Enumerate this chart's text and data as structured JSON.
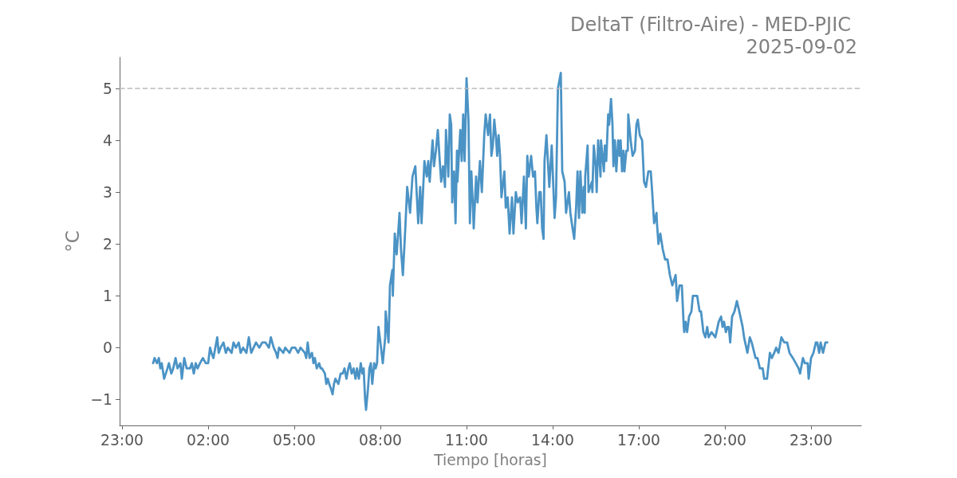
{
  "chart_data": {
    "type": "line",
    "title": "DeltaT (Filtro-Aire) - MED-PJIC",
    "subtitle": "2025-09-02",
    "xlabel": "Tiempo [horas]",
    "ylabel": "°C",
    "color": "#4b93c5",
    "x": [
      "2025-09-02T00:05",
      "2025-09-02T00:08",
      "2025-09-02T00:13",
      "2025-09-02T00:17",
      "2025-09-02T00:20",
      "2025-09-02T00:23",
      "2025-09-02T00:28",
      "2025-09-02T00:35",
      "2025-09-02T00:38",
      "2025-09-02T00:43",
      "2025-09-02T00:47",
      "2025-09-02T00:52",
      "2025-09-02T00:56",
      "2025-09-02T01:02",
      "2025-09-02T01:05",
      "2025-09-02T01:10",
      "2025-09-02T01:15",
      "2025-09-02T01:22",
      "2025-09-02T01:26",
      "2025-09-02T01:30",
      "2025-09-02T01:34",
      "2025-09-02T01:38",
      "2025-09-02T01:43",
      "2025-09-02T01:49",
      "2025-09-02T01:55",
      "2025-09-02T02:00",
      "2025-09-02T02:04",
      "2025-09-02T02:07",
      "2025-09-02T02:11",
      "2025-09-02T02:15",
      "2025-09-02T02:19",
      "2025-09-02T02:22",
      "2025-09-02T02:26",
      "2025-09-02T02:32",
      "2025-09-02T02:37",
      "2025-09-02T02:41",
      "2025-09-02T02:49",
      "2025-09-02T02:53",
      "2025-09-02T02:58",
      "2025-09-02T03:04",
      "2025-09-02T03:08",
      "2025-09-02T03:13",
      "2025-09-02T03:20",
      "2025-09-02T03:25",
      "2025-09-02T03:30",
      "2025-09-02T03:35",
      "2025-09-02T03:40",
      "2025-09-02T03:47",
      "2025-09-02T03:53",
      "2025-09-02T04:00",
      "2025-09-02T04:07",
      "2025-09-02T04:11",
      "2025-09-02T04:17",
      "2025-09-02T04:22",
      "2025-09-02T04:25",
      "2025-09-02T04:28",
      "2025-09-02T04:37",
      "2025-09-02T04:41",
      "2025-09-02T04:50",
      "2025-09-02T04:55",
      "2025-09-02T05:02",
      "2025-09-02T05:08",
      "2025-09-02T05:13",
      "2025-09-02T05:22",
      "2025-09-02T05:25",
      "2025-09-02T05:28",
      "2025-09-02T05:32",
      "2025-09-02T05:37",
      "2025-09-02T05:40",
      "2025-09-02T05:43",
      "2025-09-02T05:47",
      "2025-09-02T05:52",
      "2025-09-02T05:55",
      "2025-09-02T05:58",
      "2025-09-02T06:04",
      "2025-09-02T06:07",
      "2025-09-02T06:10",
      "2025-09-02T06:13",
      "2025-09-02T06:17",
      "2025-09-02T06:20",
      "2025-09-02T06:23",
      "2025-09-02T06:26",
      "2025-09-02T06:32",
      "2025-09-02T06:37",
      "2025-09-02T06:41",
      "2025-09-02T06:45",
      "2025-09-02T06:49",
      "2025-09-02T06:53",
      "2025-09-02T06:56",
      "2025-09-02T07:00",
      "2025-09-02T07:04",
      "2025-09-02T07:08",
      "2025-09-02T07:11",
      "2025-09-02T07:15",
      "2025-09-02T07:19",
      "2025-09-02T07:22",
      "2025-09-02T07:25",
      "2025-09-02T07:28",
      "2025-09-02T07:30",
      "2025-09-02T07:34",
      "2025-09-02T07:37",
      "2025-09-02T07:40",
      "2025-09-02T07:43",
      "2025-09-02T07:47",
      "2025-09-02T07:50",
      "2025-09-02T07:53",
      "2025-09-02T07:56",
      "2025-09-02T08:00",
      "2025-09-02T08:05",
      "2025-09-02T08:10",
      "2025-09-02T08:11",
      "2025-09-02T08:17",
      "2025-09-02T08:20",
      "2025-09-02T08:25",
      "2025-09-02T08:26",
      "2025-09-02T08:30",
      "2025-09-02T08:34",
      "2025-09-02T08:40",
      "2025-09-02T08:43",
      "2025-09-02T08:47",
      "2025-09-02T08:52",
      "2025-09-02T08:56",
      "2025-09-02T09:02",
      "2025-09-02T09:07",
      "2025-09-02T09:13",
      "2025-09-02T09:19",
      "2025-09-02T09:23",
      "2025-09-02T09:26",
      "2025-09-02T09:32",
      "2025-09-02T09:37",
      "2025-09-02T09:40",
      "2025-09-02T09:43",
      "2025-09-02T09:49",
      "2025-09-02T09:52",
      "2025-09-02T09:56",
      "2025-09-02T10:00",
      "2025-09-02T10:04",
      "2025-09-02T10:07",
      "2025-09-02T10:11",
      "2025-09-02T10:15",
      "2025-09-02T10:17",
      "2025-09-02T10:22",
      "2025-09-02T10:25",
      "2025-09-02T10:28",
      "2025-09-02T10:30",
      "2025-09-02T10:34",
      "2025-09-02T10:37",
      "2025-09-02T10:40",
      "2025-09-02T10:41",
      "2025-09-02T10:47",
      "2025-09-02T10:50",
      "2025-09-02T10:53",
      "2025-09-02T10:56",
      "2025-09-02T11:00",
      "2025-09-02T11:04",
      "2025-09-02T11:07",
      "2025-09-02T11:10",
      "2025-09-02T11:13",
      "2025-09-02T11:15",
      "2025-09-02T11:20",
      "2025-09-02T11:23",
      "2025-09-02T11:28",
      "2025-09-02T11:32",
      "2025-09-02T11:37",
      "2025-09-02T11:40",
      "2025-09-02T11:45",
      "2025-09-02T11:49",
      "2025-09-02T11:52",
      "2025-09-02T11:55",
      "2025-09-02T11:58",
      "2025-09-02T12:02",
      "2025-09-02T12:04",
      "2025-09-02T12:07",
      "2025-09-02T12:10",
      "2025-09-02T12:13",
      "2025-09-02T12:19",
      "2025-09-02T12:22",
      "2025-09-02T12:26",
      "2025-09-02T12:30",
      "2025-09-02T12:35",
      "2025-09-02T12:38",
      "2025-09-02T12:43",
      "2025-09-02T12:47",
      "2025-09-02T12:52",
      "2025-09-02T12:55",
      "2025-09-02T13:00",
      "2025-09-02T13:04",
      "2025-09-02T13:07",
      "2025-09-02T13:10",
      "2025-09-02T13:15",
      "2025-09-02T13:19",
      "2025-09-02T13:23",
      "2025-09-02T13:26",
      "2025-09-02T13:28",
      "2025-09-02T13:32",
      "2025-09-02T13:35",
      "2025-09-02T13:38",
      "2025-09-02T13:41",
      "2025-09-02T13:43",
      "2025-09-02T13:47",
      "2025-09-02T13:53",
      "2025-09-02T13:58",
      "2025-09-02T14:04",
      "2025-09-02T14:07",
      "2025-09-02T14:11",
      "2025-09-02T14:17",
      "2025-09-02T14:20",
      "2025-09-02T14:25",
      "2025-09-02T14:28",
      "2025-09-02T14:34",
      "2025-09-02T14:37",
      "2025-09-02T14:40",
      "2025-09-02T14:45",
      "2025-09-02T14:49",
      "2025-09-02T14:52",
      "2025-09-02T14:55",
      "2025-09-02T14:58",
      "2025-09-02T15:02",
      "2025-09-02T15:05",
      "2025-09-02T15:07",
      "2025-09-02T15:08",
      "2025-09-02T15:13",
      "2025-09-02T15:15",
      "2025-09-02T15:22",
      "2025-09-02T15:23",
      "2025-09-02T15:26",
      "2025-09-02T15:30",
      "2025-09-02T15:32",
      "2025-09-02T15:35",
      "2025-09-02T15:40",
      "2025-09-02T15:41",
      "2025-09-02T15:47",
      "2025-09-02T15:49",
      "2025-09-02T15:52",
      "2025-09-02T15:56",
      "2025-09-02T15:58",
      "2025-09-02T16:02",
      "2025-09-02T16:05",
      "2025-09-02T16:07",
      "2025-09-02T16:10",
      "2025-09-02T16:13",
      "2025-09-02T16:17",
      "2025-09-02T16:20",
      "2025-09-02T16:22",
      "2025-09-02T16:25",
      "2025-09-02T16:28",
      "2025-09-02T16:30",
      "2025-09-02T16:34",
      "2025-09-02T16:37",
      "2025-09-02T16:38",
      "2025-09-02T16:43",
      "2025-09-02T16:47",
      "2025-09-02T16:52",
      "2025-09-02T16:55",
      "2025-09-02T16:58",
      "2025-09-02T17:02",
      "2025-09-02T17:07",
      "2025-09-02T17:11",
      "2025-09-02T17:15",
      "2025-09-02T17:20",
      "2025-09-02T17:25",
      "2025-09-02T17:28",
      "2025-09-02T17:32",
      "2025-09-02T17:37",
      "2025-09-02T17:38",
      "2025-09-02T17:41",
      "2025-09-02T17:45",
      "2025-09-02T17:50",
      "2025-09-02T17:55",
      "2025-09-02T18:00",
      "2025-09-02T18:05",
      "2025-09-02T18:10",
      "2025-09-02T18:17",
      "2025-09-02T18:20",
      "2025-09-02T18:25",
      "2025-09-02T18:30",
      "2025-09-02T18:34",
      "2025-09-02T18:35",
      "2025-09-02T18:38",
      "2025-09-02T18:41",
      "2025-09-02T18:45",
      "2025-09-02T18:50",
      "2025-09-02T18:53",
      "2025-09-02T19:02",
      "2025-09-02T19:07",
      "2025-09-02T19:10",
      "2025-09-02T19:15",
      "2025-09-02T19:19",
      "2025-09-02T19:23",
      "2025-09-02T19:26",
      "2025-09-02T19:32",
      "2025-09-02T19:40",
      "2025-09-02T19:47",
      "2025-09-02T19:52",
      "2025-09-02T19:55",
      "2025-09-02T19:58",
      "2025-09-02T20:02",
      "2025-09-02T20:05",
      "2025-09-02T20:08",
      "2025-09-02T20:11",
      "2025-09-02T20:15",
      "2025-09-02T20:20",
      "2025-09-02T20:25",
      "2025-09-02T20:30",
      "2025-09-02T20:37",
      "2025-09-02T20:40",
      "2025-09-02T20:47",
      "2025-09-02T20:52",
      "2025-09-02T20:56",
      "2025-09-02T21:04",
      "2025-09-02T21:08",
      "2025-09-02T21:13",
      "2025-09-02T21:19",
      "2025-09-02T21:22",
      "2025-09-02T21:28",
      "2025-09-02T21:34",
      "2025-09-02T21:38",
      "2025-09-02T21:43",
      "2025-09-02T21:47",
      "2025-09-02T21:52",
      "2025-09-02T21:58",
      "2025-09-02T22:04",
      "2025-09-02T22:10",
      "2025-09-02T22:15",
      "2025-09-02T22:22",
      "2025-09-02T22:28",
      "2025-09-02T22:34",
      "2025-09-02T22:37",
      "2025-09-02T22:43",
      "2025-09-02T22:47",
      "2025-09-02T22:53",
      "2025-09-02T22:55",
      "2025-09-02T23:00",
      "2025-09-02T23:05",
      "2025-09-02T23:10",
      "2025-09-02T23:13",
      "2025-09-02T23:17",
      "2025-09-02T23:20",
      "2025-09-02T23:25",
      "2025-09-02T23:30",
      "2025-09-02T23:34"
    ],
    "values": [
      -0.3,
      -0.2,
      -0.3,
      -0.2,
      -0.4,
      -0.3,
      -0.6,
      -0.4,
      -0.3,
      -0.5,
      -0.4,
      -0.2,
      -0.4,
      -0.3,
      -0.6,
      -0.2,
      -0.4,
      -0.4,
      -0.3,
      -0.5,
      -0.3,
      -0.4,
      -0.3,
      -0.2,
      -0.3,
      -0.3,
      0.0,
      -0.1,
      -0.2,
      0.0,
      0.2,
      -0.1,
      0.0,
      0.1,
      -0.1,
      0.0,
      -0.1,
      0.1,
      0.0,
      0.1,
      -0.1,
      0.0,
      -0.1,
      0.2,
      -0.1,
      0.0,
      0.1,
      0.0,
      0.1,
      0.1,
      0.0,
      0.2,
      0.0,
      -0.1,
      -0.2,
      0.0,
      -0.1,
      0.0,
      -0.1,
      0.0,
      0.0,
      -0.1,
      0.0,
      -0.1,
      -0.2,
      0.1,
      -0.2,
      -0.1,
      -0.3,
      -0.2,
      -0.4,
      -0.3,
      -0.4,
      -0.4,
      -0.5,
      -0.7,
      -0.6,
      -0.7,
      -0.8,
      -0.9,
      -0.7,
      -0.6,
      -0.7,
      -0.5,
      -0.5,
      -0.4,
      -0.6,
      -0.4,
      -0.3,
      -0.5,
      -0.4,
      -0.6,
      -0.4,
      -0.6,
      -0.3,
      -0.5,
      -0.4,
      -1.0,
      -1.2,
      -0.8,
      -0.4,
      -0.3,
      -0.7,
      -0.3,
      -0.4,
      -0.3,
      0.4,
      0.1,
      -0.3,
      0.2,
      0.7,
      0.1,
      1.2,
      1.5,
      1.0,
      2.2,
      1.8,
      2.6,
      1.9,
      1.4,
      2.3,
      3.1,
      2.6,
      3.3,
      3.5,
      2.4,
      3.1,
      2.4,
      3.6,
      3.3,
      3.6,
      3.2,
      4.0,
      3.5,
      3.8,
      4.2,
      3.6,
      3.2,
      3.5,
      3.1,
      4.2,
      3.3,
      4.5,
      4.3,
      2.8,
      3.4,
      2.4,
      3.8,
      3.2,
      4.2,
      3.6,
      4.5,
      3.6,
      5.2,
      4.4,
      2.4,
      3.4,
      2.8,
      2.3,
      3.3,
      2.8,
      3.6,
      3.0,
      4.1,
      4.5,
      4.1,
      4.5,
      3.7,
      3.9,
      4.4,
      4.0,
      3.7,
      4.1,
      3.7,
      2.9,
      3.4,
      2.7,
      2.9,
      2.2,
      2.9,
      2.2,
      3.0,
      2.8,
      2.9,
      2.4,
      3.3,
      2.3,
      3.7,
      3.3,
      3.7,
      3.3,
      3.4,
      2.7,
      2.4,
      3.0,
      3.0,
      2.3,
      2.1,
      3.6,
      4.1,
      3.1,
      3.9,
      2.5,
      2.9,
      5.0,
      5.3,
      3.4,
      3.2,
      2.6,
      3.0,
      2.6,
      2.4,
      2.1,
      2.7,
      3.4,
      2.5,
      3.4,
      2.6,
      3.1,
      2.6,
      3.3,
      3.9,
      3.0,
      3.2,
      3.0,
      3.9,
      3.5,
      3.0,
      4.0,
      3.3,
      4.0,
      3.4,
      3.9,
      3.6,
      4.5,
      4.3,
      4.8,
      4.3,
      3.5,
      4.0,
      3.4,
      4.0,
      3.7,
      4.0,
      3.4,
      3.8,
      3.4,
      3.8,
      3.8,
      4.5,
      4.0,
      3.7,
      3.8,
      4.3,
      4.4,
      4.1,
      4.0,
      3.2,
      3.1,
      3.4,
      3.4,
      3.0,
      2.4,
      2.6,
      2.4,
      2.0,
      2.2,
      1.9,
      1.7,
      1.7,
      1.4,
      1.2,
      1.4,
      0.9,
      1.2,
      1.2,
      0.4,
      0.3,
      0.5,
      0.3,
      0.6,
      0.7,
      1.0,
      1.0,
      0.7,
      0.7,
      0.3,
      0.2,
      0.4,
      0.2,
      0.3,
      0.2,
      0.5,
      0.6,
      0.4,
      0.5,
      0.3,
      0.4,
      0.4,
      0.1,
      0.6,
      0.7,
      0.9,
      0.7,
      0.4,
      0.2,
      -0.1,
      0.2,
      0.1,
      -0.2,
      -0.2,
      -0.4,
      -0.4,
      -0.6,
      -0.6,
      -0.1,
      -0.2,
      -0.1,
      0.0,
      -0.1,
      0.2,
      0.1,
      0.1,
      -0.1,
      -0.2,
      -0.3,
      -0.4,
      -0.5,
      -0.2,
      -0.3,
      -0.3,
      -0.6,
      -0.2,
      -0.1,
      0.1,
      0.1,
      -0.1,
      0.1,
      -0.1,
      0.1,
      0.1
    ],
    "xlim": [
      "2025-09-01T22:55",
      "2025-09-03T00:45"
    ],
    "xticks": [
      {
        "value": "2025-09-01T23:00",
        "label": "23:00"
      },
      {
        "value": "2025-09-02T02:00",
        "label": "02:00"
      },
      {
        "value": "2025-09-02T05:00",
        "label": "05:00"
      },
      {
        "value": "2025-09-02T08:00",
        "label": "08:00"
      },
      {
        "value": "2025-09-02T11:00",
        "label": "11:00"
      },
      {
        "value": "2025-09-02T14:00",
        "label": "14:00"
      },
      {
        "value": "2025-09-02T17:00",
        "label": "17:00"
      },
      {
        "value": "2025-09-02T20:00",
        "label": "20:00"
      },
      {
        "value": "2025-09-02T23:00",
        "label": "23:00"
      }
    ],
    "ylim": [
      -1.5,
      5.6
    ],
    "yticks": [
      {
        "value": -1,
        "label": "−1"
      },
      0,
      1,
      2,
      3,
      4,
      5
    ],
    "ref_lines": [
      {
        "axis": "y",
        "value": 5,
        "color": "#bbbbbb",
        "line_style": "dashed"
      }
    ],
    "grid": false
  }
}
